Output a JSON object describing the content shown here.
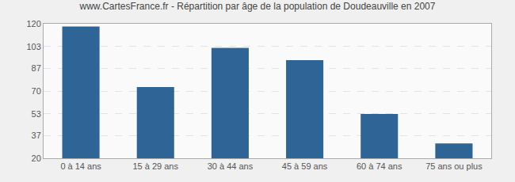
{
  "chart_data": {
    "type": "bar",
    "title": "www.CartesFrance.fr - Répartition par âge de la population de Doudeauville en 2007",
    "categories": [
      "0 à 14 ans",
      "15 à 29 ans",
      "30 à 44 ans",
      "45 à 59 ans",
      "60 à 74 ans",
      "75 ans ou plus"
    ],
    "values": [
      118,
      73,
      102,
      93,
      53,
      31
    ],
    "color": "#2f6496",
    "ylim": [
      20,
      120
    ],
    "yticks": [
      20,
      37,
      53,
      70,
      87,
      103,
      120
    ],
    "grid": true
  }
}
